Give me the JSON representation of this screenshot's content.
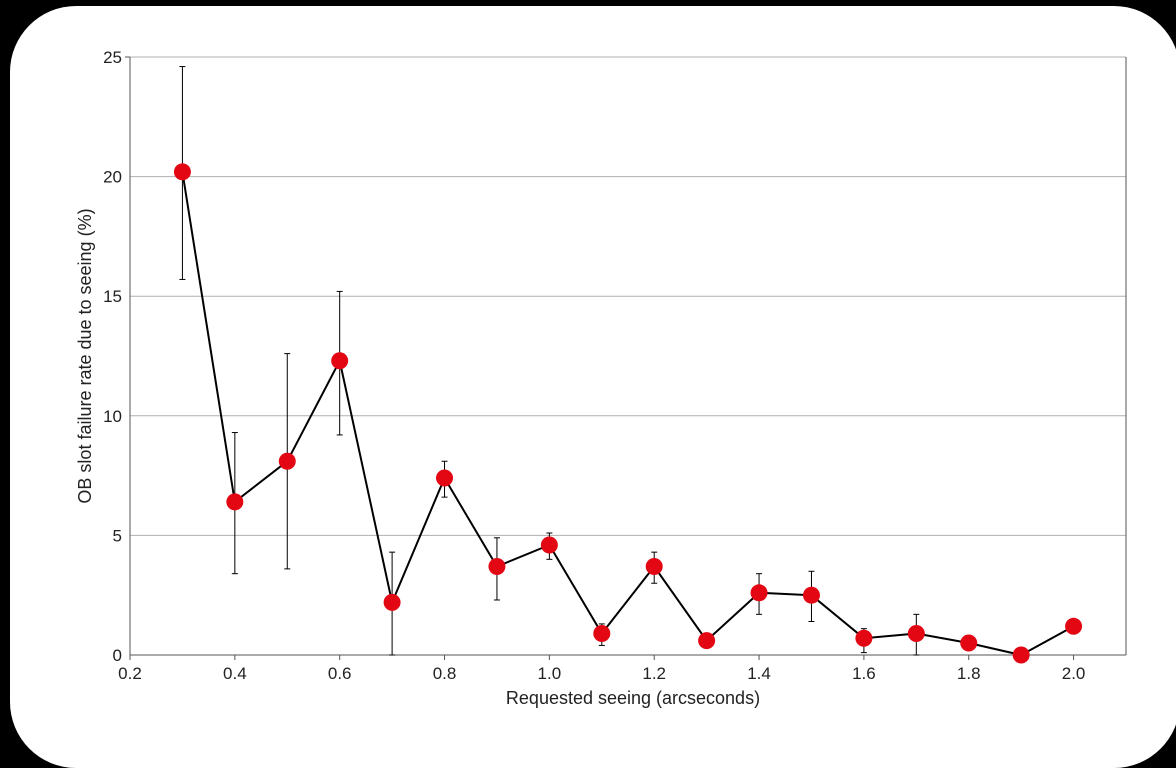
{
  "colors": {
    "background": "#000000",
    "panel": "#ffffff",
    "line": "#000000",
    "marker": "#e30613",
    "gridline": "#b0b0b0",
    "axis": "#555555"
  },
  "chart_data": {
    "type": "scatter",
    "title": "",
    "xlabel": "Requested seeing (arcseconds)",
    "ylabel": "OB slot failure rate due to seeing (%)",
    "xlim": [
      0.2,
      2.1
    ],
    "ylim": [
      0,
      25
    ],
    "xticks": [
      "0.2",
      "0.4",
      "0.6",
      "0.8",
      "1.0",
      "1.2",
      "1.4",
      "1.6",
      "1.8",
      "2.0"
    ],
    "yticks": [
      "0",
      "5",
      "10",
      "15",
      "20",
      "25"
    ],
    "grid": "horizontal",
    "legend": "none",
    "series": [
      {
        "markers": "circle",
        "connected": true,
        "points": [
          {
            "x": 0.3,
            "y": 20.2,
            "err_low": 15.7,
            "err_high": 24.6
          },
          {
            "x": 0.4,
            "y": 6.4,
            "err_low": 3.4,
            "err_high": 9.3
          },
          {
            "x": 0.5,
            "y": 8.1,
            "err_low": 3.6,
            "err_high": 12.6
          },
          {
            "x": 0.6,
            "y": 12.3,
            "err_low": 9.2,
            "err_high": 15.2
          },
          {
            "x": 0.7,
            "y": 2.2,
            "err_low": 0.0,
            "err_high": 4.3
          },
          {
            "x": 0.8,
            "y": 7.4,
            "err_low": 6.6,
            "err_high": 8.1
          },
          {
            "x": 0.9,
            "y": 3.7,
            "err_low": 2.3,
            "err_high": 4.9
          },
          {
            "x": 1.0,
            "y": 4.6,
            "err_low": 4.0,
            "err_high": 5.1
          },
          {
            "x": 1.1,
            "y": 0.9,
            "err_low": 0.4,
            "err_high": 1.3
          },
          {
            "x": 1.2,
            "y": 3.7,
            "err_low": 3.0,
            "err_high": 4.3
          },
          {
            "x": 1.3,
            "y": 0.6,
            "err_low": 0.4,
            "err_high": 0.8
          },
          {
            "x": 1.4,
            "y": 2.6,
            "err_low": 1.7,
            "err_high": 3.4
          },
          {
            "x": 1.5,
            "y": 2.5,
            "err_low": 1.4,
            "err_high": 3.5
          },
          {
            "x": 1.6,
            "y": 0.7,
            "err_low": 0.1,
            "err_high": 1.1
          },
          {
            "x": 1.7,
            "y": 0.9,
            "err_low": 0.0,
            "err_high": 1.7
          },
          {
            "x": 1.8,
            "y": 0.5,
            "err_low": 0.2,
            "err_high": 0.8
          },
          {
            "x": 1.9,
            "y": 0.0,
            "err_low": 0.0,
            "err_high": 0.0
          },
          {
            "x": 2.0,
            "y": 1.2,
            "err_low": 1.0,
            "err_high": 1.4
          }
        ]
      }
    ]
  }
}
